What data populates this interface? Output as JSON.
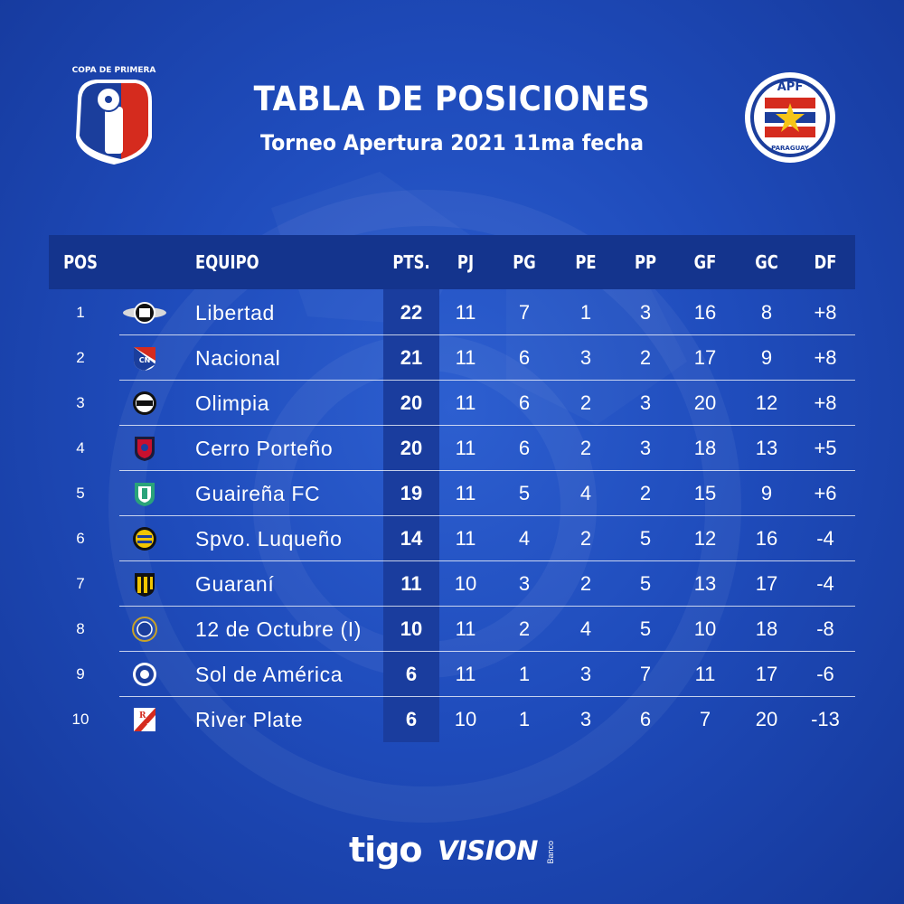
{
  "title": "TABLA DE POSICIONES",
  "subtitle": "Torneo Apertura 2021 11ma fecha",
  "logos": {
    "left": {
      "icon": "copa-de-primera-logo",
      "text": "COPA DE PRIMERA"
    },
    "right": {
      "icon": "apf-paraguay-crest",
      "top_text": "APF",
      "bottom_text": "PARAGUAY"
    }
  },
  "table": {
    "headers": {
      "pos": "POS",
      "team": "EQUIPO",
      "pts": "PTS.",
      "pj": "PJ",
      "pg": "PG",
      "pe": "PE",
      "pp": "PP",
      "gf": "GF",
      "gc": "GC",
      "df": "DF"
    },
    "rows": [
      {
        "pos": "1",
        "team": "Libertad",
        "crest": "libertad-crest",
        "pts": "22",
        "pj": "11",
        "pg": "7",
        "pe": "1",
        "pp": "3",
        "gf": "16",
        "gc": "8",
        "df": "+8"
      },
      {
        "pos": "2",
        "team": "Nacional",
        "crest": "nacional-crest",
        "pts": "21",
        "pj": "11",
        "pg": "6",
        "pe": "3",
        "pp": "2",
        "gf": "17",
        "gc": "9",
        "df": "+8"
      },
      {
        "pos": "3",
        "team": "Olimpia",
        "crest": "olimpia-crest",
        "pts": "20",
        "pj": "11",
        "pg": "6",
        "pe": "2",
        "pp": "3",
        "gf": "20",
        "gc": "12",
        "df": "+8"
      },
      {
        "pos": "4",
        "team": "Cerro Porteño",
        "crest": "cerro-porteno-crest",
        "pts": "20",
        "pj": "11",
        "pg": "6",
        "pe": "2",
        "pp": "3",
        "gf": "18",
        "gc": "13",
        "df": "+5"
      },
      {
        "pos": "5",
        "team": "Guaireña FC",
        "crest": "guairena-crest",
        "pts": "19",
        "pj": "11",
        "pg": "5",
        "pe": "4",
        "pp": "2",
        "gf": "15",
        "gc": "9",
        "df": "+6"
      },
      {
        "pos": "6",
        "team": "Spvo. Luqueño",
        "crest": "luqueno-crest",
        "pts": "14",
        "pj": "11",
        "pg": "4",
        "pe": "2",
        "pp": "5",
        "gf": "12",
        "gc": "16",
        "df": "-4"
      },
      {
        "pos": "7",
        "team": "Guaraní",
        "crest": "guarani-crest",
        "pts": "11",
        "pj": "10",
        "pg": "3",
        "pe": "2",
        "pp": "5",
        "gf": "13",
        "gc": "17",
        "df": "-4"
      },
      {
        "pos": "8",
        "team": "12 de Octubre (I)",
        "crest": "12-de-octubre-crest",
        "pts": "10",
        "pj": "11",
        "pg": "2",
        "pe": "4",
        "pp": "5",
        "gf": "10",
        "gc": "18",
        "df": "-8"
      },
      {
        "pos": "9",
        "team": "Sol de América",
        "crest": "sol-de-america-crest",
        "pts": "6",
        "pj": "11",
        "pg": "1",
        "pe": "3",
        "pp": "7",
        "gf": "11",
        "gc": "17",
        "df": "-6"
      },
      {
        "pos": "10",
        "team": "River Plate",
        "crest": "river-plate-crest",
        "pts": "6",
        "pj": "10",
        "pg": "1",
        "pe": "3",
        "pp": "6",
        "gf": "7",
        "gc": "20",
        "df": "-13"
      }
    ]
  },
  "sponsors": {
    "tigo": "tigo",
    "vision": "VISION",
    "banco": "Banco"
  },
  "colors": {
    "background": "#1f4cbc",
    "header_bar": "#14348d",
    "pts_column": "#1a3d9e",
    "apf_red": "#d52b1e",
    "apf_blue": "#1b3e9c",
    "star": "#f5c518"
  }
}
